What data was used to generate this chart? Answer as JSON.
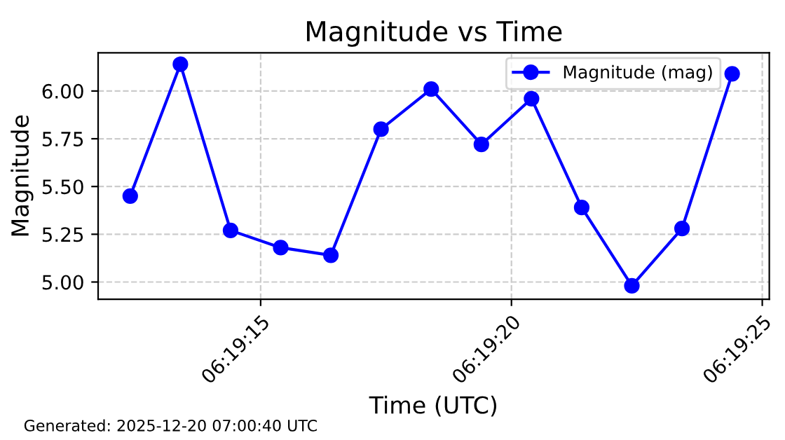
{
  "chart_data": {
    "type": "line",
    "title": "Magnitude vs Time",
    "xlabel": "Time (UTC)",
    "ylabel": "Magnitude",
    "annotations": [
      "Generated: 2025-12-20 07:00:40 UTC"
    ],
    "x": [
      6.3201111,
      6.3203889,
      6.3206667,
      6.3209444,
      6.3212222,
      6.3215,
      6.3217778,
      6.3220556,
      6.3223333,
      6.3226111,
      6.3228889,
      6.3231667,
      6.3234444
    ],
    "series": [
      {
        "name": "Magnitude (mag)",
        "color": "#0000ff",
        "values": [
          5.45,
          6.14,
          5.27,
          5.18,
          5.14,
          5.8,
          6.01,
          5.72,
          5.96,
          5.39,
          4.98,
          5.28,
          6.09
        ]
      }
    ],
    "xlim": [
      6.3199333,
      6.32365
    ],
    "xticks": [
      {
        "value": 6.3208333,
        "label": "06:19:15"
      },
      {
        "value": 6.3222222,
        "label": "06:19:20"
      },
      {
        "value": 6.3236111,
        "label": "06:19:25"
      }
    ],
    "ylim": [
      4.91,
      6.2
    ],
    "yticks": [
      {
        "value": 5.0,
        "label": "5.00"
      },
      {
        "value": 5.25,
        "label": "5.25"
      },
      {
        "value": 5.5,
        "label": "5.50"
      },
      {
        "value": 5.75,
        "label": "5.75"
      },
      {
        "value": 6.0,
        "label": "6.00"
      }
    ],
    "grid": true,
    "legend": "top right",
    "marker": "circle",
    "line_style": "solid"
  }
}
